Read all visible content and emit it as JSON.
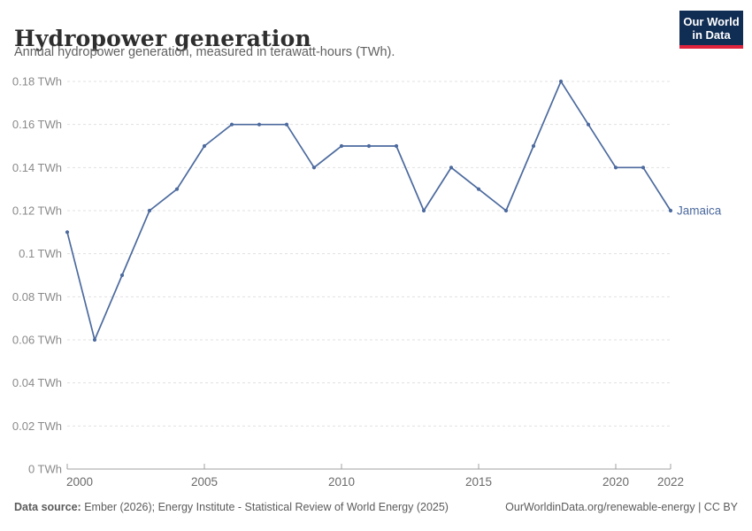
{
  "header": {
    "title": "Hydropower generation",
    "subtitle": "Annual hydropower generation, measured in terawatt-hours (TWh)."
  },
  "logo": {
    "line1": "Our World",
    "line2": "in Data"
  },
  "chart_data": {
    "type": "line",
    "title": "Hydropower generation",
    "ylabel": "terawatt-hours (TWh)",
    "x": [
      2000,
      2001,
      2002,
      2003,
      2004,
      2005,
      2006,
      2007,
      2008,
      2009,
      2010,
      2011,
      2012,
      2013,
      2014,
      2015,
      2016,
      2017,
      2018,
      2019,
      2020,
      2021,
      2022
    ],
    "series": [
      {
        "name": "Jamaica",
        "color": "#4c6a9e",
        "values": [
          0.11,
          0.06,
          0.09,
          0.12,
          0.13,
          0.15,
          0.16,
          0.16,
          0.16,
          0.14,
          0.15,
          0.15,
          0.15,
          0.12,
          0.14,
          0.13,
          0.12,
          0.15,
          0.18,
          0.16,
          0.14,
          0.14,
          0.12
        ]
      }
    ],
    "xlim": [
      2000,
      2022
    ],
    "ylim": [
      0,
      0.18
    ],
    "x_ticks": [
      2000,
      2005,
      2010,
      2015,
      2020,
      2022
    ],
    "y_ticks": [
      0,
      0.02,
      0.04,
      0.06,
      0.08,
      0.1,
      0.12,
      0.14,
      0.16,
      0.18
    ],
    "y_tick_suffix": " TWh",
    "grid": "horizontal-dashed",
    "legend_position": "line-end"
  },
  "footer": {
    "source_label": "Data source:",
    "source_text": " Ember (2026); Energy Institute - Statistical Review of World Energy (2025)",
    "credit": "OurWorldinData.org/renewable-energy | CC BY"
  },
  "colors": {
    "line": "#4c6a9e",
    "grid": "#e1e1e1",
    "axis": "#a0a0a0",
    "y_tick_label": "#8a8a8a",
    "x_tick_label": "#6b6b6b",
    "logo_bg": "#102d54",
    "logo_bar": "#e0233c"
  }
}
